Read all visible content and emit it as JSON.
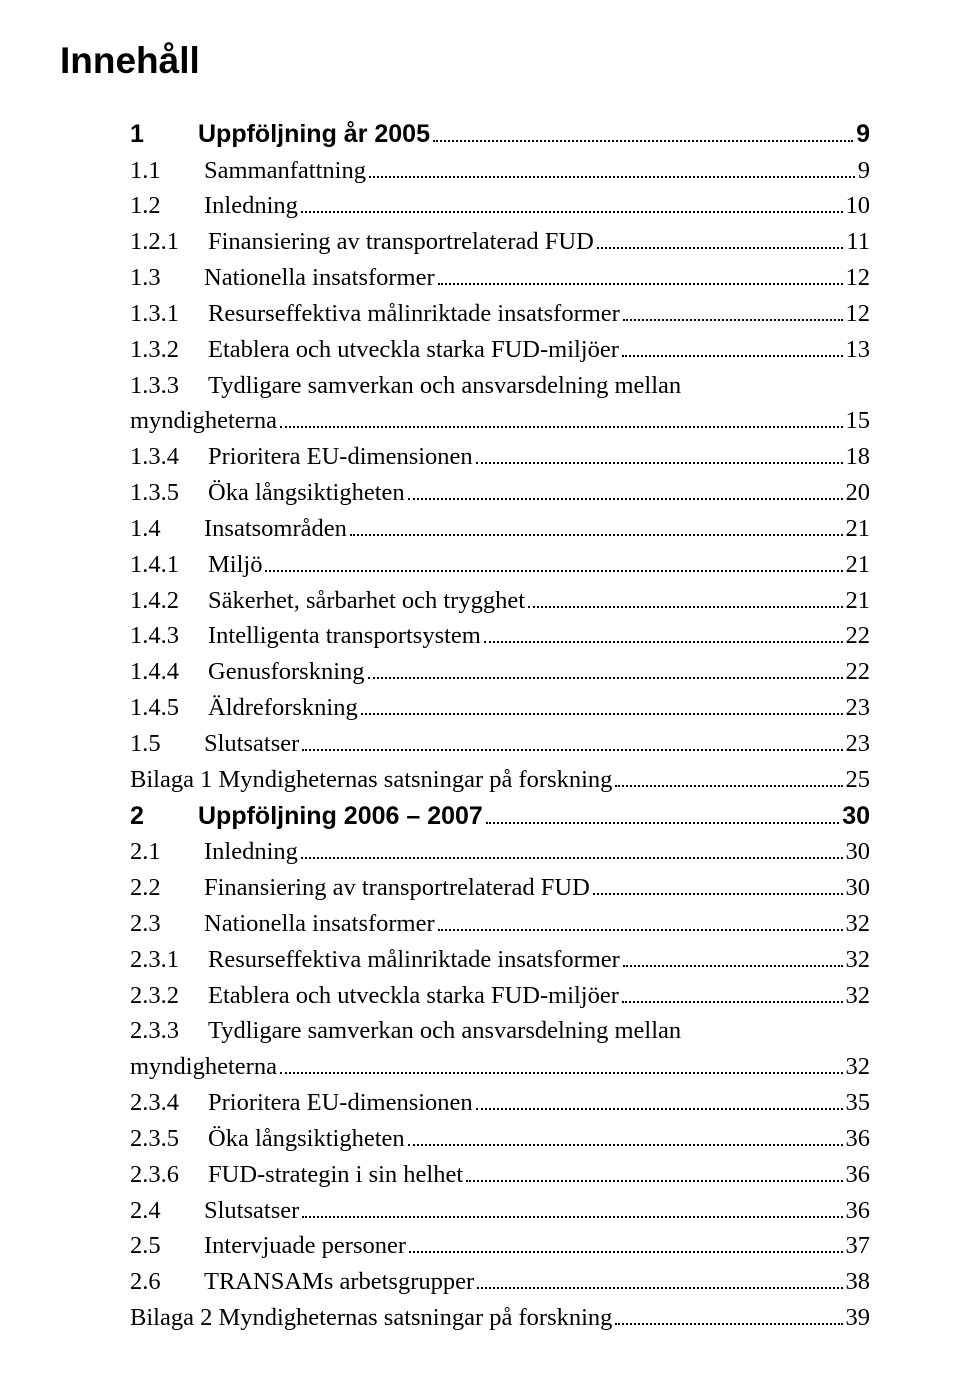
{
  "title": "Innehåll",
  "colors": {
    "text": "#000000",
    "background": "#ffffff",
    "dots": "#000000"
  },
  "typography": {
    "title_font": "Arial",
    "title_weight": "bold",
    "title_size_pt": 28,
    "body_font": "Times New Roman",
    "body_size_pt": 18,
    "chapter_font": "Arial",
    "chapter_weight": "bold",
    "chapter_size_pt": 19
  },
  "entries": [
    {
      "level": "chapter",
      "num": "1",
      "label": "Uppföljning år 2005",
      "page": "9"
    },
    {
      "level": "section",
      "num": "1.1",
      "label": "Sammanfattning",
      "page": "9"
    },
    {
      "level": "section",
      "num": "1.2",
      "label": "Inledning",
      "page": "10"
    },
    {
      "level": "subsection",
      "num": "1.2.1",
      "label": "Finansiering av transportrelaterad FUD",
      "page": "11"
    },
    {
      "level": "section",
      "num": "1.3",
      "label": "Nationella insatsformer",
      "page": "12"
    },
    {
      "level": "subsection",
      "num": "1.3.1",
      "label": "Resurseffektiva målinriktade insatsformer",
      "page": "12"
    },
    {
      "level": "subsection",
      "num": "1.3.2",
      "label": "Etablera och utveckla starka FUD-miljöer",
      "page": "13"
    },
    {
      "level": "subsection",
      "num": "1.3.3",
      "label": "Tydligare samverkan och ansvarsdelning mellan",
      "page": ""
    },
    {
      "level": "cont",
      "num": "",
      "label": "myndigheterna",
      "page": "15"
    },
    {
      "level": "subsection",
      "num": "1.3.4",
      "label": "Prioritera EU-dimensionen",
      "page": "18"
    },
    {
      "level": "subsection",
      "num": "1.3.5",
      "label": "Öka långsiktigheten",
      "page": "20"
    },
    {
      "level": "section",
      "num": "1.4",
      "label": "Insatsområden",
      "page": "21"
    },
    {
      "level": "subsection",
      "num": "1.4.1",
      "label": "Miljö",
      "page": "21"
    },
    {
      "level": "subsection",
      "num": "1.4.2",
      "label": "Säkerhet, sårbarhet och trygghet",
      "page": "21"
    },
    {
      "level": "subsection",
      "num": "1.4.3",
      "label": "Intelligenta transportsystem",
      "page": "22"
    },
    {
      "level": "subsection",
      "num": "1.4.4",
      "label": "Genusforskning",
      "page": "22"
    },
    {
      "level": "subsection",
      "num": "1.4.5",
      "label": "Äldreforskning",
      "page": "23"
    },
    {
      "level": "section",
      "num": "1.5",
      "label": "Slutsatser",
      "page": "23"
    },
    {
      "level": "bilaga",
      "num": "",
      "label": "Bilaga 1 Myndigheternas satsningar på forskning",
      "page": "25"
    },
    {
      "level": "chapter",
      "num": "2",
      "label": "Uppföljning 2006 – 2007",
      "page": "30"
    },
    {
      "level": "section",
      "num": "2.1",
      "label": "Inledning",
      "page": "30"
    },
    {
      "level": "section",
      "num": "2.2",
      "label": "Finansiering av transportrelaterad FUD",
      "page": "30"
    },
    {
      "level": "section",
      "num": "2.3",
      "label": "Nationella insatsformer",
      "page": "32"
    },
    {
      "level": "subsection",
      "num": "2.3.1",
      "label": "Resurseffektiva målinriktade insatsformer",
      "page": "32"
    },
    {
      "level": "subsection",
      "num": "2.3.2",
      "label": "Etablera och utveckla starka FUD-miljöer",
      "page": "32"
    },
    {
      "level": "subsection",
      "num": "2.3.3",
      "label": "Tydligare samverkan och ansvarsdelning mellan",
      "page": ""
    },
    {
      "level": "cont",
      "num": "",
      "label": "myndigheterna",
      "page": "32"
    },
    {
      "level": "subsection",
      "num": "2.3.4",
      "label": "Prioritera EU-dimensionen",
      "page": "35"
    },
    {
      "level": "subsection",
      "num": "2.3.5",
      "label": "Öka långsiktigheten",
      "page": "36"
    },
    {
      "level": "subsection",
      "num": "2.3.6",
      "label": "FUD-strategin i sin helhet",
      "page": "36"
    },
    {
      "level": "section",
      "num": "2.4",
      "label": "Slutsatser",
      "page": "36"
    },
    {
      "level": "section",
      "num": "2.5",
      "label": "Intervjuade personer",
      "page": "37"
    },
    {
      "level": "section",
      "num": "2.6",
      "label": "TRANSAMs arbetsgrupper",
      "page": "38"
    },
    {
      "level": "bilaga",
      "num": "",
      "label": "Bilaga 2 Myndigheternas satsningar på forskning",
      "page": "39"
    }
  ]
}
